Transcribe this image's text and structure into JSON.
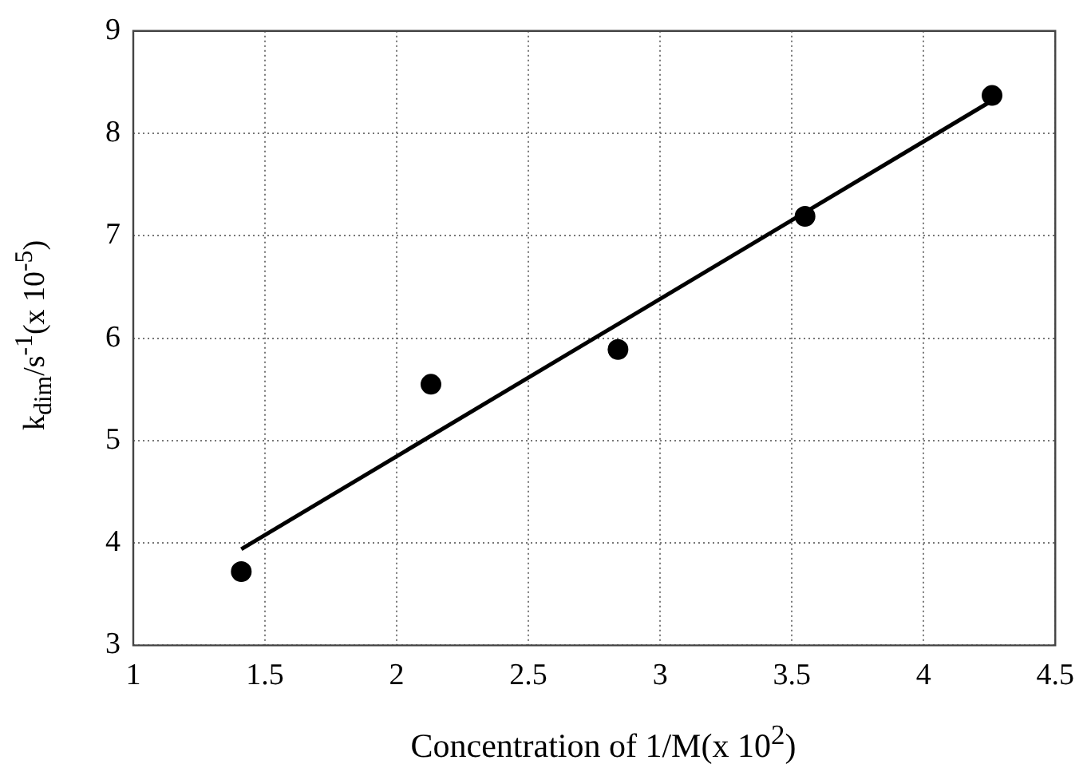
{
  "chart_data": {
    "type": "scatter",
    "xlabel": "Concentration of 1/M(x 10$^{2}$)",
    "ylabel": "k$_{dim}$/s$^{-1}$(x 10$^{-5}$)",
    "xlim": [
      1,
      4.5
    ],
    "ylim": [
      3,
      9
    ],
    "xticks": [
      1,
      1.5,
      2,
      2.5,
      3,
      3.5,
      4,
      4.5
    ],
    "yticks": [
      3,
      4,
      5,
      6,
      7,
      8,
      9
    ],
    "grid": true,
    "series": [
      {
        "type": "scatter",
        "color": "#000000",
        "marker": "circle",
        "x": [
          1.41,
          2.13,
          2.84,
          3.55,
          4.26
        ],
        "values": [
          3.72,
          5.55,
          5.89,
          7.19,
          8.37
        ]
      },
      {
        "type": "line",
        "color": "#000000",
        "x": [
          1.41,
          4.26
        ],
        "values": [
          3.94,
          8.32
        ],
        "line_style": "solid",
        "marker": "none"
      }
    ]
  }
}
